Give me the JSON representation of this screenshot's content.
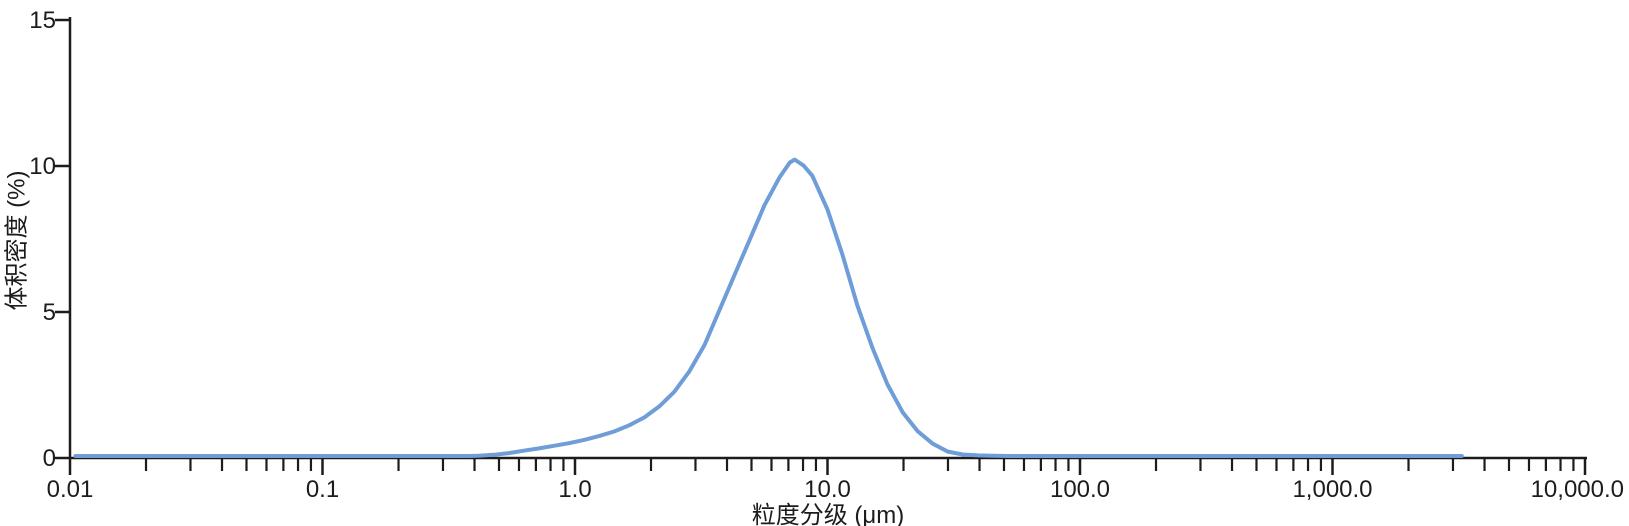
{
  "page": {
    "background_color": "#ffffff"
  },
  "chart_data": {
    "type": "line",
    "title": "",
    "xlabel": "粒度分级 (μm)",
    "ylabel": "体积密度 (%)",
    "x_scale": "log",
    "x_range": [
      0.01,
      10000
    ],
    "y_range": [
      0,
      15
    ],
    "grid": false,
    "legend": "none",
    "axis_color": "#1c1c1e",
    "text_color": "#1c1c1e",
    "y_ticks": [
      {
        "value": 0,
        "label": "0"
      },
      {
        "value": 5,
        "label": "5"
      },
      {
        "value": 10,
        "label": "10"
      },
      {
        "value": 15,
        "label": "15"
      }
    ],
    "x_major_ticks": [
      {
        "value": 0.01,
        "label": "0.01"
      },
      {
        "value": 0.1,
        "label": "0.1"
      },
      {
        "value": 1,
        "label": "1.0"
      },
      {
        "value": 10,
        "label": "10.0"
      },
      {
        "value": 100,
        "label": "100.0"
      },
      {
        "value": 1000,
        "label": "1,000.0"
      },
      {
        "value": 10000,
        "label": "10,000.0"
      }
    ],
    "x_minor_tick_multipliers": [
      2,
      3,
      4,
      5,
      6,
      7,
      8,
      9
    ],
    "series": [
      {
        "name": "volume-density-distribution",
        "color": "#6F9DD8",
        "stroke_width": 4,
        "points": [
          [
            0.0105,
            0
          ],
          [
            0.02,
            0
          ],
          [
            0.05,
            0
          ],
          [
            0.1,
            0
          ],
          [
            0.2,
            0
          ],
          [
            0.3,
            0
          ],
          [
            0.38,
            0
          ],
          [
            0.4154,
            0.01
          ],
          [
            0.4765,
            0.04
          ],
          [
            0.5466,
            0.1
          ],
          [
            0.627,
            0.18
          ],
          [
            0.7192,
            0.26
          ],
          [
            0.825,
            0.35
          ],
          [
            0.9464,
            0.44
          ],
          [
            1.086,
            0.55
          ],
          [
            1.245,
            0.68
          ],
          [
            1.429,
            0.84
          ],
          [
            1.639,
            1.05
          ],
          [
            1.88,
            1.32
          ],
          [
            2.157,
            1.7
          ],
          [
            2.474,
            2.2
          ],
          [
            2.838,
            2.9
          ],
          [
            3.256,
            3.8
          ],
          [
            3.734,
            5.0
          ],
          [
            4.284,
            6.2
          ],
          [
            4.914,
            7.4
          ],
          [
            5.637,
            8.6
          ],
          [
            6.466,
            9.55
          ],
          [
            7.09,
            10.05
          ],
          [
            7.417,
            10.15
          ],
          [
            8.036,
            9.95
          ],
          [
            8.709,
            9.6
          ],
          [
            9.99,
            8.45
          ],
          [
            11.46,
            6.9
          ],
          [
            13.14,
            5.15
          ],
          [
            15.08,
            3.7
          ],
          [
            17.29,
            2.45
          ],
          [
            19.84,
            1.5
          ],
          [
            22.76,
            0.85
          ],
          [
            26.11,
            0.42
          ],
          [
            29.94,
            0.15
          ],
          [
            34.35,
            0.05
          ],
          [
            39.4,
            0.02
          ],
          [
            45.2,
            0.01
          ],
          [
            51.85,
            0
          ],
          [
            68.23,
            0
          ],
          [
            100,
            0
          ],
          [
            200,
            0
          ],
          [
            500,
            0
          ],
          [
            1000,
            0
          ],
          [
            2000,
            0
          ],
          [
            3250,
            0
          ]
        ]
      }
    ]
  }
}
